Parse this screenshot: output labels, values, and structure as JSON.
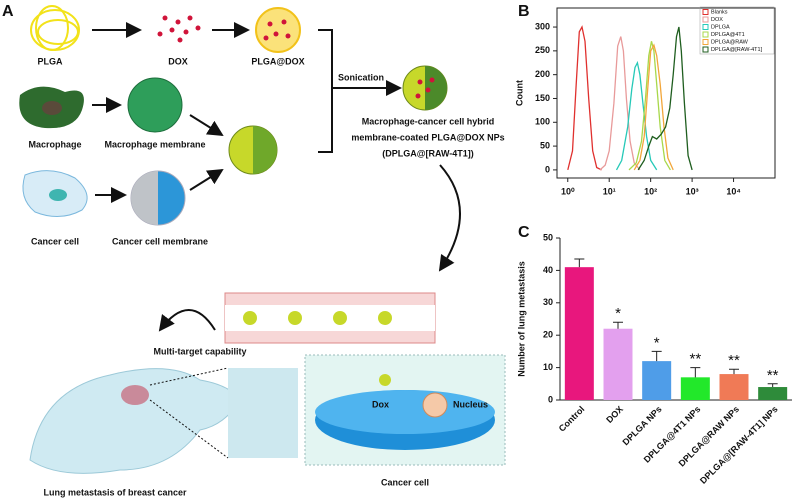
{
  "panel_a": {
    "label": "A",
    "plga": "PLGA",
    "dox": "DOX",
    "plga_dox": "PLGA@DOX",
    "sonication": "Sonication",
    "product_line1": "Macrophage-cancer cell hybrid",
    "product_line2": "membrane-coated PLGA@DOX NPs",
    "product_line3": "(DPLGA@[RAW-4T1])",
    "macrophage": "Macrophage",
    "macrophage_membrane": "Macrophage membrane",
    "cancer_cell": "Cancer cell",
    "cancer_cell_membrane": "Cancer cell membrane",
    "multi_target": "Multi-target capability",
    "lung_metastasis": "Lung metastasis of breast cancer",
    "cancer_cell_zoom": "Cancer cell",
    "dox_label": "Dox",
    "nucleus": "Nucleus"
  },
  "chart_data": [
    {
      "type": "line",
      "label": "B",
      "ylabel": "Count",
      "xscale": "log",
      "xlim": [
        0.55,
        100000
      ],
      "xticks": [
        {
          "value": 1,
          "label": "10⁰"
        },
        {
          "value": 10,
          "label": "10¹"
        },
        {
          "value": 100,
          "label": "10²"
        },
        {
          "value": 1000,
          "label": "10³"
        },
        {
          "value": 10000,
          "label": "10⁴"
        }
      ],
      "ylim": [
        -17,
        340
      ],
      "yticks": [
        0,
        50,
        100,
        150,
        200,
        250,
        300
      ],
      "legend": "top-right",
      "series": [
        {
          "name": "Blanks",
          "color": "#e0302e",
          "x": [
            1,
            1.3,
            1.6,
            1.9,
            2.2,
            2.6,
            3.2,
            4,
            5,
            6.5
          ],
          "values": [
            0,
            40,
            180,
            290,
            300,
            270,
            150,
            40,
            5,
            0
          ]
        },
        {
          "name": "DOX",
          "color": "#e89a9a",
          "x": [
            6,
            8,
            10,
            13,
            16,
            19,
            22,
            26,
            32,
            40,
            55
          ],
          "values": [
            0,
            10,
            40,
            140,
            260,
            280,
            250,
            150,
            60,
            15,
            0
          ]
        },
        {
          "name": "DPLGA",
          "color": "#26c9b8",
          "x": [
            15,
            20,
            28,
            35,
            42,
            48,
            55,
            65,
            80,
            100,
            140
          ],
          "values": [
            0,
            20,
            90,
            170,
            215,
            225,
            200,
            140,
            70,
            20,
            0
          ]
        },
        {
          "name": "DPLGA@4T1",
          "color": "#a8d84a",
          "x": [
            30,
            45,
            60,
            75,
            90,
            105,
            120,
            140,
            170,
            220,
            300
          ],
          "values": [
            0,
            15,
            60,
            150,
            240,
            270,
            250,
            180,
            90,
            20,
            0
          ]
        },
        {
          "name": "DPLGA@RAW",
          "color": "#f2a63a",
          "x": [
            40,
            55,
            70,
            85,
            100,
            120,
            140,
            170,
            210,
            260,
            350
          ],
          "values": [
            0,
            20,
            70,
            170,
            250,
            262,
            240,
            180,
            90,
            25,
            0
          ]
        },
        {
          "name": "DPLGA@[RAW-4T1]",
          "color": "#1f5e1f",
          "x": [
            50,
            70,
            90,
            110,
            140,
            180,
            230,
            290,
            350,
            420,
            480,
            550,
            650,
            800,
            1000
          ],
          "values": [
            0,
            20,
            50,
            70,
            65,
            75,
            90,
            130,
            200,
            280,
            300,
            250,
            140,
            30,
            0
          ]
        }
      ]
    },
    {
      "type": "bar",
      "label": "C",
      "ylabel": "Number of lung metastasis",
      "categories": [
        "Control",
        "DOX",
        "DPLGA NPs",
        "DPLGA@4T1 NPs",
        "DPLGA@RAW NPs",
        "DPLGA@[RAW-4T1] NPs"
      ],
      "values": [
        41,
        22,
        12,
        7,
        8,
        4
      ],
      "errors": [
        2.5,
        2,
        3,
        3,
        1.5,
        1
      ],
      "colors": [
        "#e8177d",
        "#e3a0ee",
        "#4f9de8",
        "#22e82a",
        "#f07a56",
        "#2e8b3a"
      ],
      "significance": [
        null,
        "*",
        "*",
        "**",
        "**",
        "**"
      ],
      "ylim": [
        0,
        50
      ],
      "yticks": [
        0,
        10,
        20,
        30,
        40,
        50
      ]
    }
  ]
}
